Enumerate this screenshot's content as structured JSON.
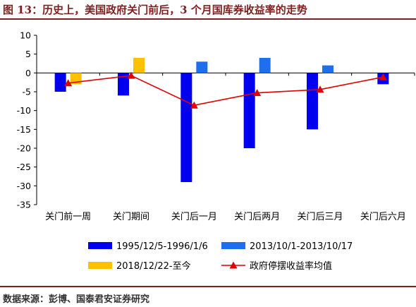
{
  "header": {
    "title": "图 13：历史上，美国政府关门前后，3 个月国库券收益率的走势"
  },
  "footer": {
    "source": "数据来源：彭博、国泰君安证券研究"
  },
  "colors": {
    "series_1995": "#0000ee",
    "series_2013": "#1e6ff0",
    "series_2018": "#ffc000",
    "series_avg": "#e00000",
    "axis": "#000000",
    "text": "#000000"
  },
  "chart_data": {
    "type": "bar",
    "categories": [
      "关门前一周",
      "关门期间",
      "关门后一月",
      "关门后两月",
      "关门后三月",
      "关门后六月"
    ],
    "ylim": [
      -35,
      10
    ],
    "yticks": [
      10,
      5,
      0,
      -5,
      -10,
      -15,
      -20,
      -25,
      -30,
      -35
    ],
    "grid": false,
    "legend_position": "bottom",
    "series": [
      {
        "name": "1995/12/5-1996/1/6",
        "type": "bar",
        "color": "#0000ee",
        "values": [
          -5,
          -6,
          -29,
          -20,
          -15,
          -3
        ]
      },
      {
        "name": "2013/10/1-2013/10/17",
        "type": "bar",
        "color": "#1e6ff0",
        "values": [
          null,
          null,
          3,
          4,
          2,
          null
        ]
      },
      {
        "name": "2018/12/22-至今",
        "type": "bar",
        "color": "#ffc000",
        "values": [
          -3,
          4,
          null,
          null,
          null,
          null
        ]
      },
      {
        "name": "政府停摆收益率均值",
        "type": "line",
        "color": "#e00000",
        "values": [
          -2.7,
          -0.7,
          -8.6,
          -5.3,
          -4.4,
          -1.1
        ]
      }
    ]
  }
}
